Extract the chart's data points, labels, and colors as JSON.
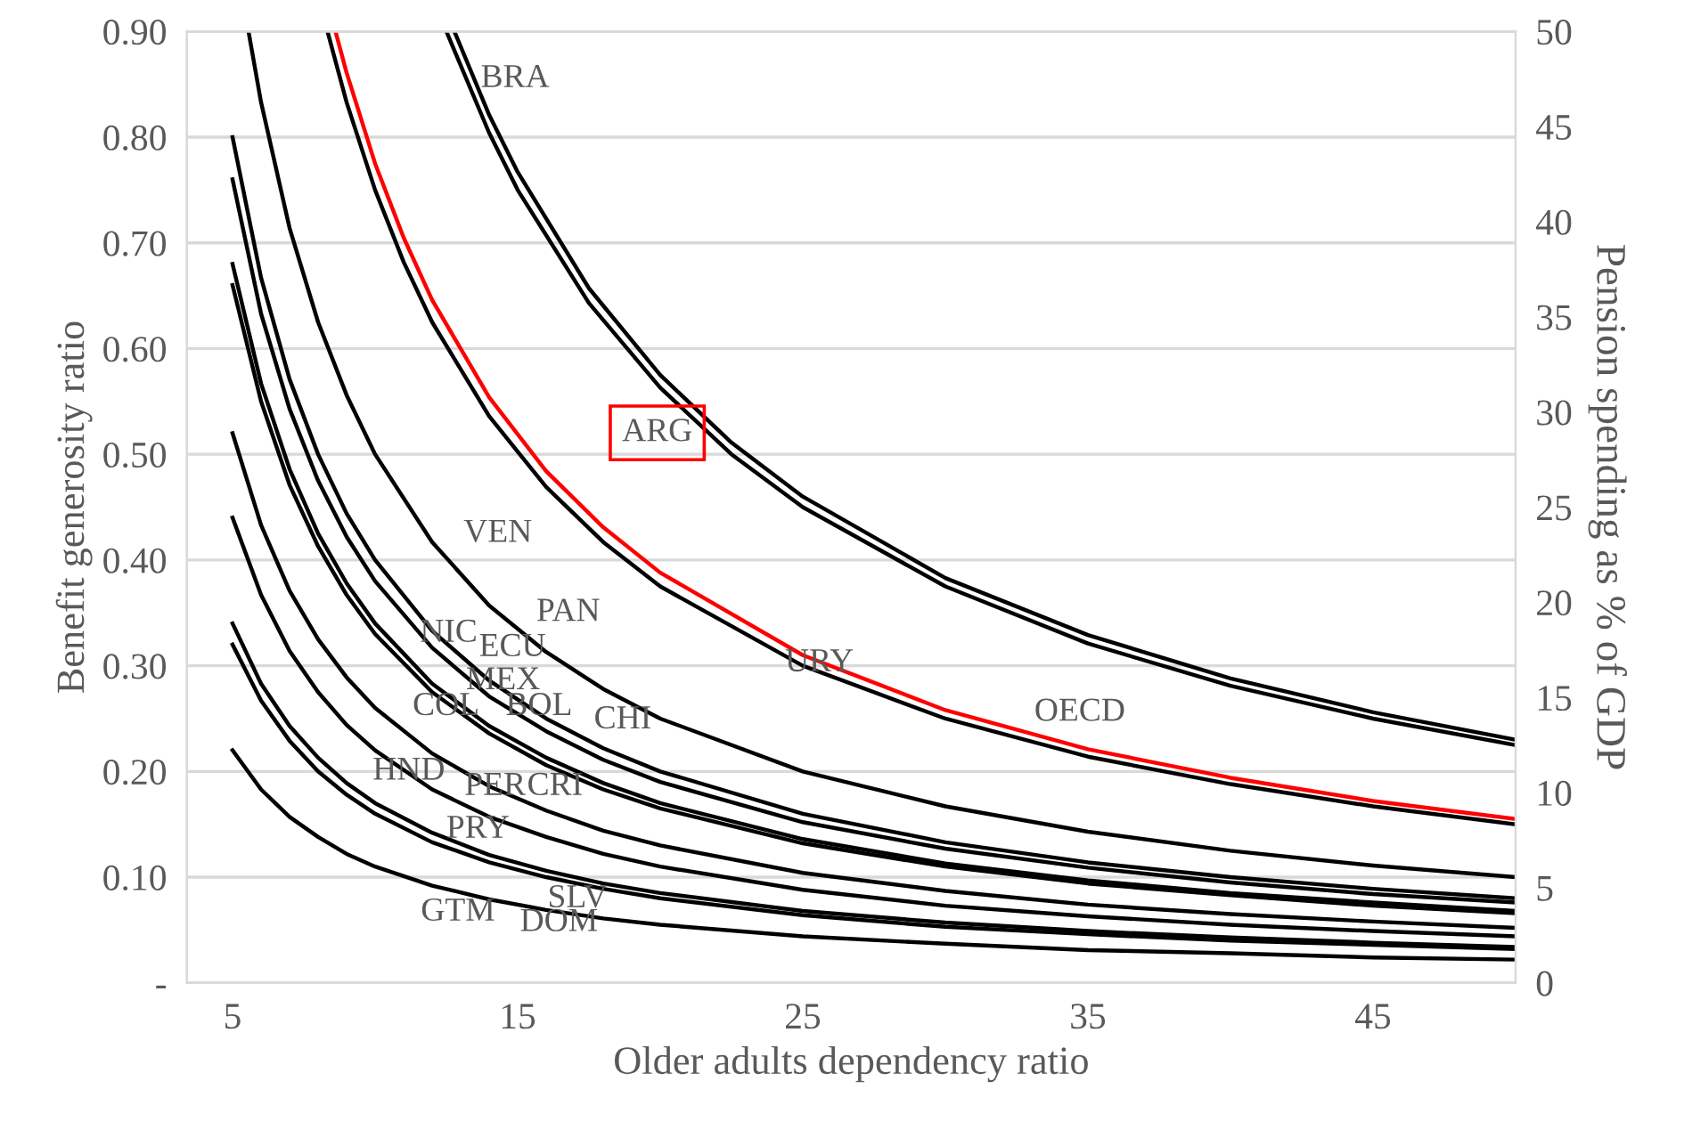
{
  "chart_data": {
    "type": "line",
    "xlabel": "Older adults dependency ratio",
    "ylabel": "Benefit generosity ratio",
    "y2label": "Pension spending as % of GDP",
    "xlim": [
      3.4,
      50
    ],
    "xticks": [
      5,
      15,
      25,
      35,
      45
    ],
    "ylim": [
      0,
      0.9
    ],
    "yticks": [
      {
        "value": 0,
        "label": "-"
      },
      {
        "value": 0.1,
        "label": "0.10"
      },
      {
        "value": 0.2,
        "label": "0.20"
      },
      {
        "value": 0.3,
        "label": "0.30"
      },
      {
        "value": 0.4,
        "label": "0.40"
      },
      {
        "value": 0.5,
        "label": "0.50"
      },
      {
        "value": 0.6,
        "label": "0.60"
      },
      {
        "value": 0.7,
        "label": "0.70"
      },
      {
        "value": 0.8,
        "label": "0.80"
      },
      {
        "value": 0.9,
        "label": "0.90"
      }
    ],
    "y2lim": [
      0,
      50
    ],
    "y2ticks": [
      0,
      5,
      10,
      15,
      20,
      25,
      30,
      35,
      40,
      45,
      50
    ],
    "grid": "y",
    "marker": "none",
    "line_style": "solid",
    "series": [
      {
        "color": "#000000",
        "x": [
          12.78,
          14,
          15,
          17.5,
          20,
          22.5,
          25,
          30,
          35,
          40,
          45,
          50
        ],
        "values": [
          0.9,
          0.821,
          0.767,
          0.657,
          0.575,
          0.511,
          0.46,
          0.383,
          0.329,
          0.288,
          0.256,
          0.23
        ]
      },
      {
        "color": "#000000",
        "x": [
          12.5,
          14,
          15,
          17.5,
          20,
          22.5,
          25,
          30,
          35,
          40,
          45,
          50
        ],
        "values": [
          0.9,
          0.804,
          0.75,
          0.643,
          0.563,
          0.5,
          0.45,
          0.375,
          0.321,
          0.281,
          0.25,
          0.225
        ]
      },
      {
        "color": "#ff0000",
        "x": [
          8.61,
          9,
          10,
          11,
          12,
          14,
          16,
          18,
          20,
          25,
          30,
          35,
          40,
          45,
          50
        ],
        "values": [
          0.9,
          0.861,
          0.775,
          0.705,
          0.646,
          0.554,
          0.484,
          0.431,
          0.388,
          0.31,
          0.258,
          0.221,
          0.194,
          0.172,
          0.155
        ]
      },
      {
        "color": "#000000",
        "x": [
          8.33,
          9,
          10,
          11,
          12,
          14,
          16,
          18,
          20,
          25,
          30,
          35,
          40,
          45,
          50
        ],
        "values": [
          0.9,
          0.833,
          0.75,
          0.682,
          0.625,
          0.536,
          0.469,
          0.417,
          0.375,
          0.3,
          0.25,
          0.214,
          0.188,
          0.167,
          0.15
        ]
      },
      {
        "color": "#000000",
        "x": [
          5.56,
          6,
          7,
          8,
          9,
          10,
          12,
          14,
          16,
          18,
          20,
          25,
          30,
          35,
          40,
          45,
          50
        ],
        "values": [
          0.9,
          0.833,
          0.714,
          0.625,
          0.556,
          0.5,
          0.417,
          0.357,
          0.313,
          0.278,
          0.25,
          0.2,
          0.167,
          0.143,
          0.125,
          0.111,
          0.1
        ]
      },
      {
        "color": "#000000",
        "x": [
          5,
          6,
          7,
          8,
          9,
          10,
          12,
          14,
          16,
          18,
          20,
          25,
          30,
          35,
          40,
          45,
          50
        ],
        "values": [
          0.8,
          0.667,
          0.571,
          0.5,
          0.444,
          0.4,
          0.333,
          0.286,
          0.25,
          0.222,
          0.2,
          0.16,
          0.133,
          0.114,
          0.1,
          0.089,
          0.08
        ]
      },
      {
        "color": "#000000",
        "x": [
          5,
          6,
          7,
          8,
          9,
          10,
          12,
          14,
          16,
          18,
          20,
          25,
          30,
          35,
          40,
          45,
          50
        ],
        "values": [
          0.76,
          0.633,
          0.543,
          0.475,
          0.422,
          0.38,
          0.317,
          0.271,
          0.238,
          0.211,
          0.19,
          0.152,
          0.127,
          0.109,
          0.095,
          0.084,
          0.076
        ]
      },
      {
        "color": "#000000",
        "x": [
          5,
          6,
          7,
          8,
          9,
          10,
          12,
          14,
          16,
          18,
          20,
          25,
          30,
          35,
          40,
          45,
          50
        ],
        "values": [
          0.68,
          0.567,
          0.486,
          0.425,
          0.378,
          0.34,
          0.283,
          0.243,
          0.213,
          0.189,
          0.17,
          0.136,
          0.113,
          0.097,
          0.085,
          0.076,
          0.068
        ]
      },
      {
        "color": "#000000",
        "x": [
          5,
          6,
          7,
          8,
          9,
          10,
          12,
          14,
          16,
          18,
          20,
          25,
          30,
          35,
          40,
          45,
          50
        ],
        "values": [
          0.66,
          0.55,
          0.471,
          0.413,
          0.367,
          0.33,
          0.275,
          0.236,
          0.206,
          0.183,
          0.165,
          0.132,
          0.11,
          0.094,
          0.083,
          0.073,
          0.066
        ]
      },
      {
        "color": "#000000",
        "x": [
          5,
          6,
          7,
          8,
          9,
          10,
          12,
          14,
          16,
          18,
          20,
          25,
          30,
          35,
          40,
          45,
          50
        ],
        "values": [
          0.52,
          0.433,
          0.371,
          0.325,
          0.289,
          0.26,
          0.217,
          0.186,
          0.163,
          0.144,
          0.13,
          0.104,
          0.087,
          0.074,
          0.065,
          0.058,
          0.052
        ]
      },
      {
        "color": "#000000",
        "x": [
          5,
          6,
          7,
          8,
          9,
          10,
          12,
          14,
          16,
          18,
          20,
          25,
          30,
          35,
          40,
          45,
          50
        ],
        "values": [
          0.44,
          0.367,
          0.314,
          0.275,
          0.244,
          0.22,
          0.183,
          0.157,
          0.138,
          0.122,
          0.11,
          0.088,
          0.073,
          0.063,
          0.055,
          0.049,
          0.044
        ]
      },
      {
        "color": "#000000",
        "x": [
          5,
          6,
          7,
          8,
          9,
          10,
          12,
          14,
          16,
          18,
          20,
          25,
          30,
          35,
          40,
          45,
          50
        ],
        "values": [
          0.34,
          0.283,
          0.243,
          0.213,
          0.189,
          0.17,
          0.142,
          0.121,
          0.106,
          0.094,
          0.085,
          0.068,
          0.057,
          0.049,
          0.043,
          0.038,
          0.034
        ]
      },
      {
        "color": "#000000",
        "x": [
          5,
          6,
          7,
          8,
          9,
          10,
          12,
          14,
          16,
          18,
          20,
          25,
          30,
          35,
          40,
          45,
          50
        ],
        "values": [
          0.32,
          0.267,
          0.229,
          0.2,
          0.178,
          0.16,
          0.133,
          0.114,
          0.1,
          0.089,
          0.08,
          0.064,
          0.053,
          0.046,
          0.04,
          0.036,
          0.032
        ]
      },
      {
        "color": "#000000",
        "x": [
          5,
          6,
          7,
          8,
          9,
          10,
          12,
          14,
          16,
          18,
          20,
          25,
          30,
          35,
          40,
          45,
          50
        ],
        "values": [
          0.22,
          0.183,
          0.157,
          0.138,
          0.122,
          0.11,
          0.092,
          0.079,
          0.069,
          0.061,
          0.055,
          0.044,
          0.037,
          0.031,
          0.028,
          0.024,
          0.022
        ]
      }
    ],
    "annotations": [
      "BRA",
      "ARG",
      "VEN",
      "PAN",
      "NIC",
      "ECU",
      "URY",
      "MEX",
      "COL",
      "BOL",
      "CHI",
      "OECD",
      "HND",
      "PER",
      "CRI",
      "PRY",
      "SLV",
      "GTM",
      "DOM"
    ]
  }
}
